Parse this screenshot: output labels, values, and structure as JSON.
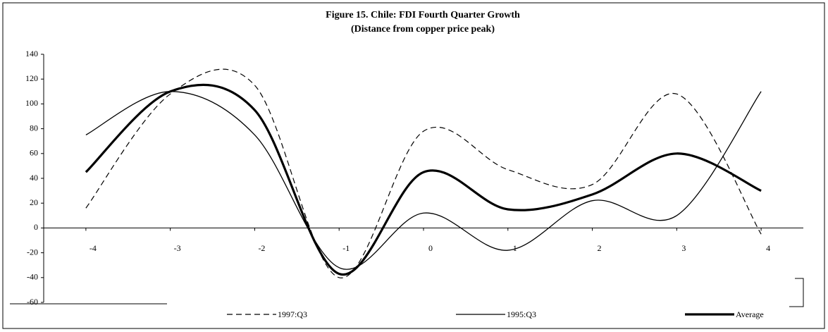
{
  "chart_data": {
    "type": "line",
    "title": "Figure 15. Chile: FDI Fourth Quarter Growth",
    "subtitle": "(Distance from copper price peak)",
    "x": [
      -4,
      -3,
      -2,
      -1,
      0,
      1,
      2,
      3,
      4
    ],
    "xlim": [
      -4.5,
      4.5
    ],
    "xticks": [
      -4,
      -3,
      -2,
      -1,
      0,
      1,
      2,
      3,
      4
    ],
    "ylim": [
      -60,
      140
    ],
    "yticks": [
      -60,
      -40,
      -20,
      0,
      20,
      40,
      60,
      80,
      100,
      120,
      140
    ],
    "smooth": true,
    "legend": "bottom",
    "series": [
      {
        "name": "1997:Q3",
        "color": "#000000",
        "dash": "dashed",
        "width": 1.2,
        "values": [
          16,
          108,
          115,
          -40,
          78,
          47,
          35,
          108,
          -5
        ]
      },
      {
        "name": "1995:Q3",
        "color": "#000000",
        "dash": "solid",
        "width": 1.3,
        "values": [
          75,
          110,
          75,
          -32,
          12,
          -18,
          22,
          10,
          110
        ]
      },
      {
        "name": "Average",
        "color": "#000000",
        "dash": "solid",
        "width": 3.2,
        "values": [
          45,
          110,
          95,
          -37,
          45,
          15,
          27,
          60,
          30
        ]
      }
    ]
  }
}
